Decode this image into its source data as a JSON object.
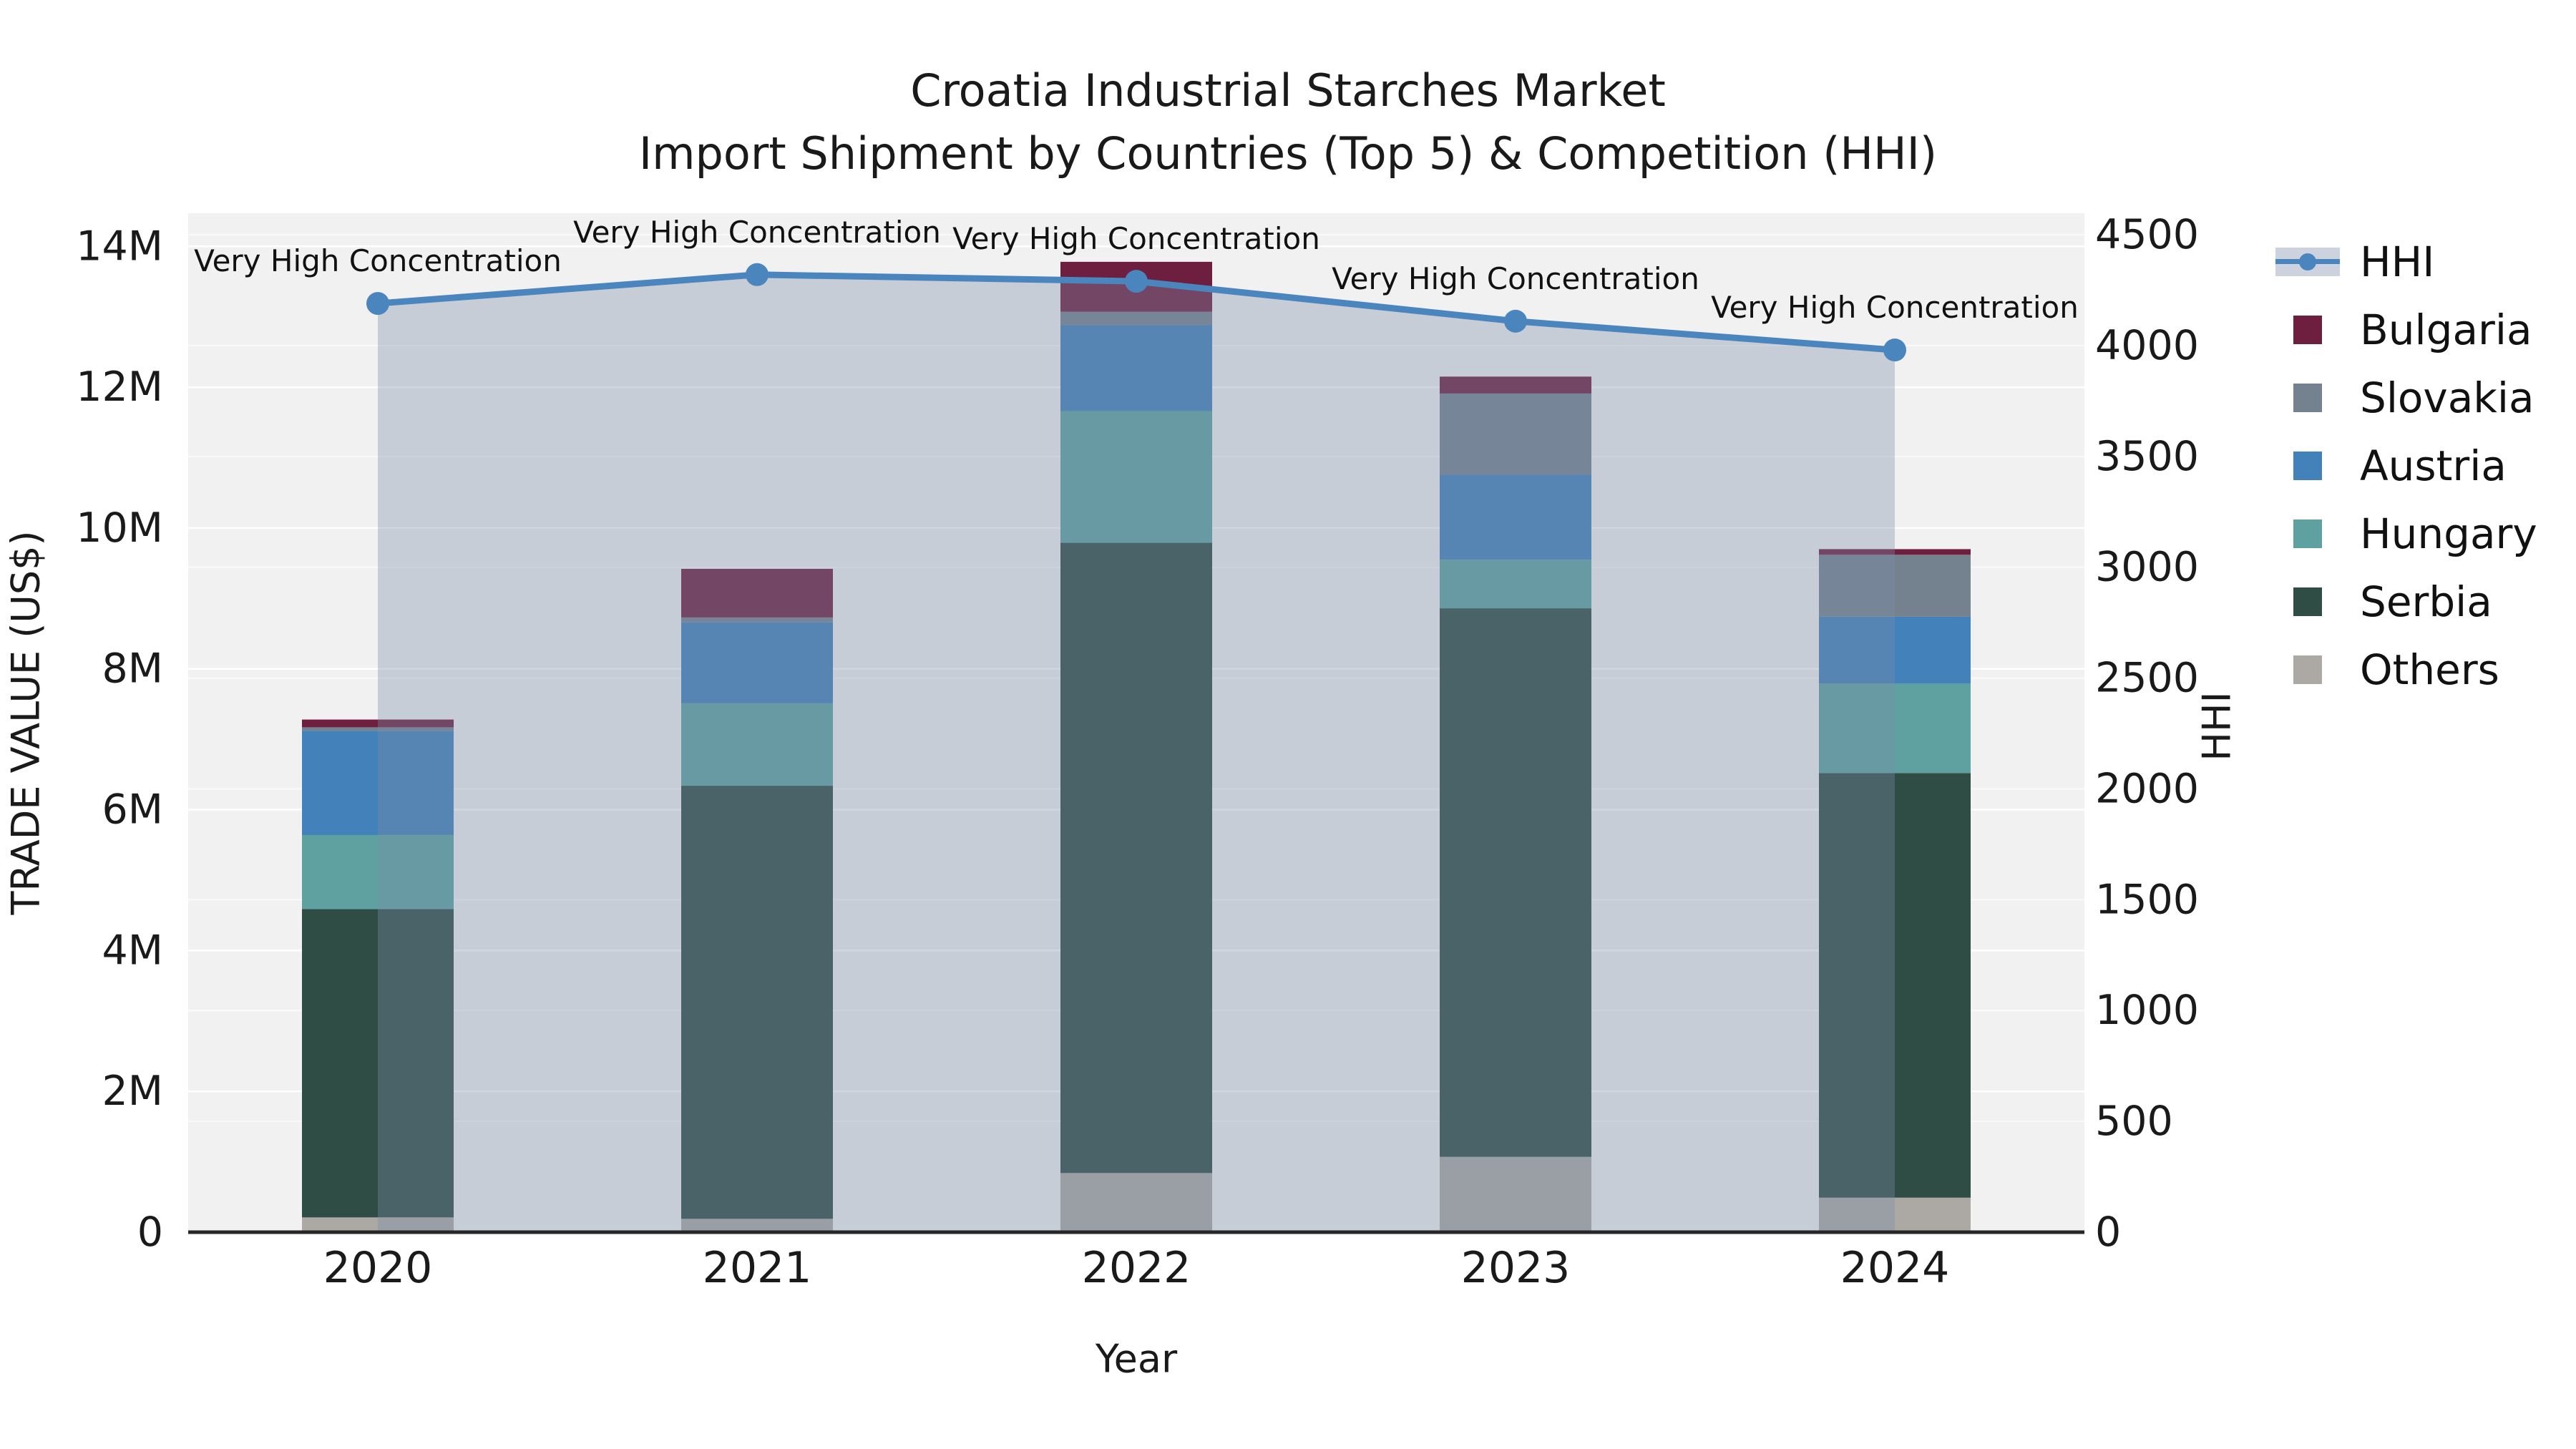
{
  "chart_data": {
    "type": "combo-stacked-bar-line",
    "title": "Croatia Industrial Starches Market",
    "subtitle": "Import Shipment by Countries (Top 5) & Competition (HHI)",
    "categories": [
      "2020",
      "2021",
      "2022",
      "2023",
      "2024"
    ],
    "unit": "million US$",
    "bar_axis": "left",
    "bar_stack_order_bottom_to_top": [
      "Others",
      "Serbia",
      "Hungary",
      "Austria",
      "Slovakia",
      "Bulgaria"
    ],
    "series": [
      {
        "name": "Others",
        "color": "#aca8a3",
        "values": [
          0.21,
          0.19,
          0.84,
          1.07,
          0.49
        ]
      },
      {
        "name": "Serbia",
        "color": "#2f4c45",
        "values": [
          4.38,
          6.15,
          8.95,
          7.79,
          6.03
        ]
      },
      {
        "name": "Hungary",
        "color": "#5fa1a1",
        "values": [
          1.05,
          1.17,
          1.87,
          0.69,
          1.27
        ]
      },
      {
        "name": "Austria",
        "color": "#4381bb",
        "values": [
          1.48,
          1.15,
          1.22,
          1.21,
          0.95
        ]
      },
      {
        "name": "Slovakia",
        "color": "#74818f",
        "values": [
          0.05,
          0.07,
          0.19,
          1.15,
          0.88
        ]
      },
      {
        "name": "Bulgaria",
        "color": "#6e1e3e",
        "values": [
          0.11,
          0.69,
          0.71,
          0.24,
          0.08
        ]
      }
    ],
    "bar_totals": [
      7.28,
      9.42,
      13.78,
      12.15,
      9.7
    ],
    "line_series": {
      "name": "HHI",
      "axis": "right",
      "color": "#4a85bd",
      "area_fill": "rgba(122,140,168,0.36)",
      "values": [
        4190,
        4320,
        4290,
        4110,
        3980
      ]
    },
    "annotations": [
      "Very High Concentration",
      "Very High Concentration",
      "Very High Concentration",
      "Very High Concentration",
      "Very High Concentration"
    ],
    "left_axis": {
      "title": "TRADE VALUE (US$)",
      "tick_labels": [
        "0",
        "2M",
        "4M",
        "6M",
        "8M",
        "10M",
        "12M",
        "14M"
      ],
      "tick_values": [
        0,
        2,
        4,
        6,
        8,
        10,
        12,
        14
      ],
      "range": [
        0,
        14.47
      ],
      "grid": true
    },
    "right_axis": {
      "title": "HHI",
      "tick_labels": [
        "0",
        "500",
        "1000",
        "1500",
        "2000",
        "2500",
        "3000",
        "3500",
        "4000",
        "4500"
      ],
      "tick_values": [
        0,
        500,
        1000,
        1500,
        2000,
        2500,
        3000,
        3500,
        4000,
        4500
      ],
      "range": [
        0,
        4597
      ],
      "grid": true
    },
    "x_axis": {
      "title": "Year",
      "grid": false
    },
    "plot_background": "#f1f1f1",
    "gridline_color": "#ffffff",
    "legend_position": "right"
  },
  "legend": {
    "items": [
      {
        "label": "HHI",
        "type": "line",
        "color": "#4a85bd",
        "band_color": "#ccd3de"
      },
      {
        "label": "Bulgaria",
        "type": "square",
        "color": "#6e1e3e"
      },
      {
        "label": "Slovakia",
        "type": "square",
        "color": "#74818f"
      },
      {
        "label": "Austria",
        "type": "square",
        "color": "#4381bb"
      },
      {
        "label": "Hungary",
        "type": "square",
        "color": "#5fa1a1"
      },
      {
        "label": "Serbia",
        "type": "square",
        "color": "#2f4c45"
      },
      {
        "label": "Others",
        "type": "square",
        "color": "#aca8a3"
      }
    ]
  }
}
